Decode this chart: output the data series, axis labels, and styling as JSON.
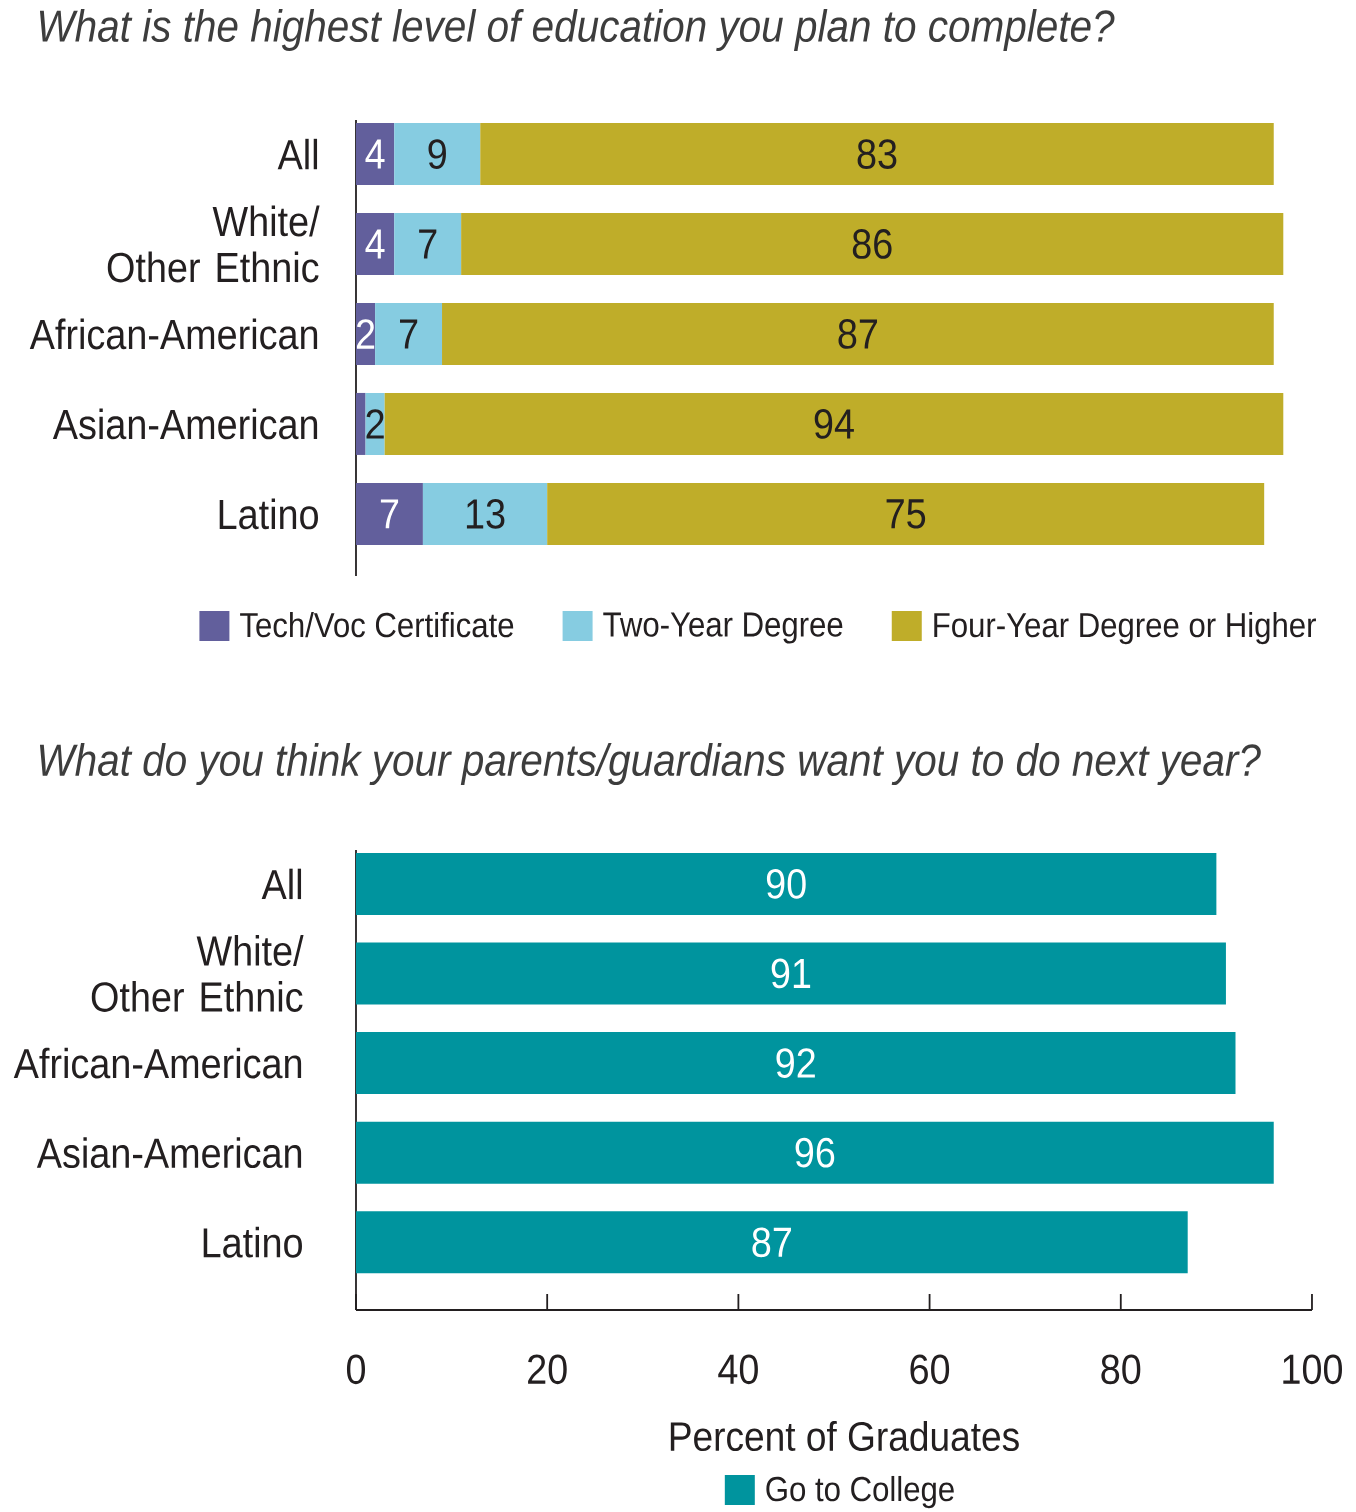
{
  "chart_data": [
    {
      "type": "bar",
      "orientation": "horizontal",
      "stacked": true,
      "title": "What is the highest level of education you plan to complete?",
      "categories": [
        "All",
        "White/ Other Ethnic",
        "African-American",
        "Asian-American",
        "Latino"
      ],
      "series": [
        {
          "name": "Tech/Voc Certificate",
          "color": "#625f9c",
          "values": [
            4,
            4,
            2,
            1,
            7
          ],
          "value_labels": [
            "4",
            "4",
            "2",
            null,
            "7"
          ]
        },
        {
          "name": "Two-Year Degree",
          "color": "#86cce1",
          "values": [
            9,
            7,
            7,
            2,
            13
          ],
          "value_labels": [
            "9",
            "7",
            "7",
            "2",
            "13"
          ]
        },
        {
          "name": "Four-Year Degree or Higher",
          "color": "#bfad29",
          "values": [
            83,
            86,
            87,
            94,
            75
          ],
          "value_labels": [
            "83",
            "86",
            "87",
            "94",
            "75"
          ]
        }
      ],
      "xlim": [
        0,
        100
      ],
      "tick_labels": "y",
      "legend": "bottom"
    },
    {
      "type": "bar",
      "orientation": "horizontal",
      "title": "What do you think your parents/guardians want you to do next year?",
      "categories": [
        "All",
        "White/ Other Ethnic",
        "African-American",
        "Asian-American",
        "Latino"
      ],
      "series": [
        {
          "name": "Go to College",
          "color": "#00949e",
          "values": [
            90,
            91,
            92,
            96,
            87
          ]
        }
      ],
      "xlim": [
        0,
        100
      ],
      "xticks": [
        0,
        20,
        40,
        60,
        80,
        100
      ],
      "xlabel": "Percent of Graduates",
      "data_labels": true,
      "legend": "bottom"
    }
  ]
}
